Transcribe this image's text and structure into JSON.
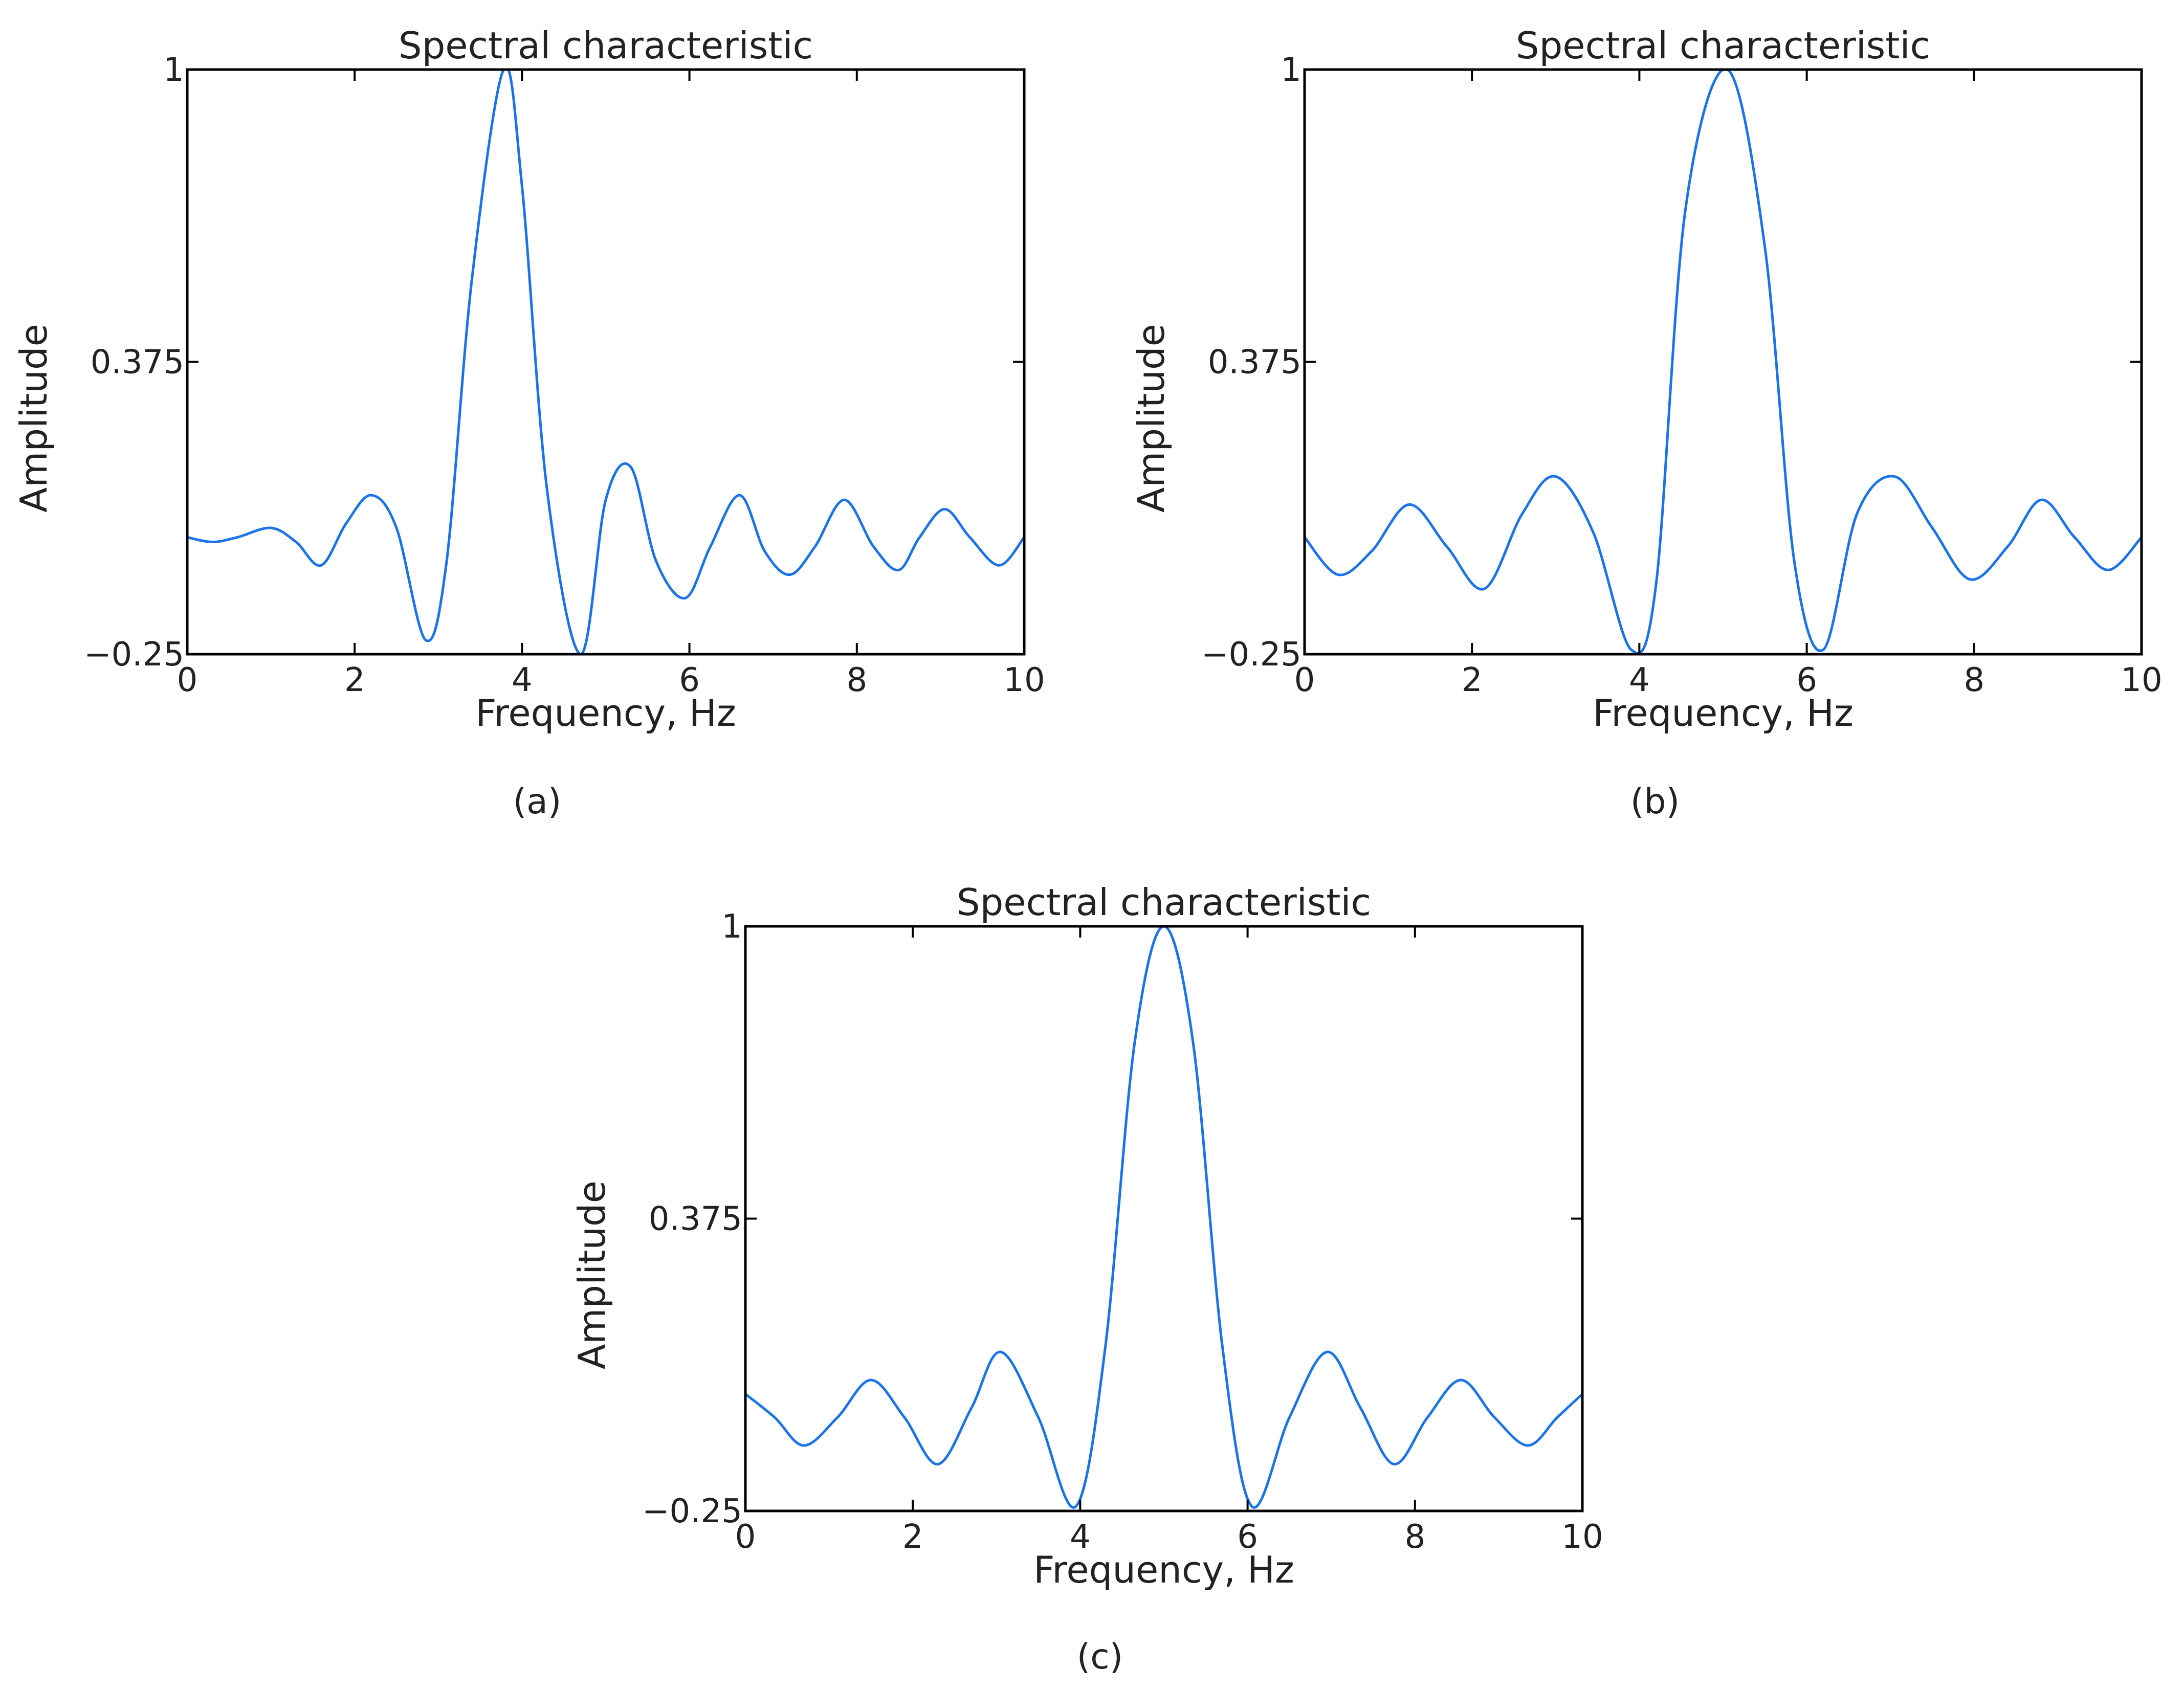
{
  "figure": {
    "line_color": "#1a73e8",
    "axis_color": "#000000"
  },
  "chart_data": [
    {
      "type": "line",
      "panel": "a",
      "caption": "(a)",
      "title": "Spectral characteristic",
      "xlabel": "Frequency, Hz",
      "ylabel": "Amplitude",
      "xlim": [
        0,
        10
      ],
      "ylim": [
        -0.25,
        1
      ],
      "xticks": [
        0,
        2,
        4,
        6,
        8,
        10
      ],
      "yticks": [
        -0.25,
        0.375,
        1
      ],
      "xtick_labels": [
        "0",
        "2",
        "4",
        "6",
        "8",
        "10"
      ],
      "ytick_labels": [
        "−0.25",
        "0.375",
        "1"
      ],
      "grid": false,
      "series": [
        {
          "x": [
            0,
            0.3,
            0.6,
            1.0,
            1.3,
            1.6,
            1.9,
            2.2,
            2.5,
            2.85,
            3.1,
            3.4,
            3.78,
            4.0,
            4.3,
            4.7,
            5.0,
            5.3,
            5.6,
            5.95,
            6.25,
            6.6,
            6.9,
            7.2,
            7.5,
            7.85,
            8.2,
            8.5,
            8.75,
            9.05,
            9.35,
            9.7,
            10.0
          ],
          "y": [
            0.0,
            -0.01,
            0.0,
            0.02,
            -0.01,
            -0.06,
            0.03,
            0.09,
            0.02,
            -0.22,
            -0.05,
            0.55,
            1.0,
            0.75,
            0.1,
            -0.25,
            0.08,
            0.15,
            -0.05,
            -0.13,
            -0.02,
            0.09,
            -0.03,
            -0.08,
            -0.02,
            0.08,
            -0.02,
            -0.07,
            0.0,
            0.06,
            0.0,
            -0.06,
            0.0
          ]
        }
      ]
    },
    {
      "type": "line",
      "panel": "b",
      "caption": "(b)",
      "title": "Spectral characteristic",
      "xlabel": "Frequency, Hz",
      "ylabel": "Amplitude",
      "xlim": [
        0,
        10
      ],
      "ylim": [
        -0.25,
        1
      ],
      "xticks": [
        0,
        2,
        4,
        6,
        8,
        10
      ],
      "yticks": [
        -0.25,
        0.375,
        1
      ],
      "xtick_labels": [
        "0",
        "2",
        "4",
        "6",
        "8",
        "10"
      ],
      "ytick_labels": [
        "−0.25",
        "0.375",
        "1"
      ],
      "grid": false,
      "series": [
        {
          "x": [
            0,
            0.4,
            0.8,
            1.25,
            1.7,
            2.15,
            2.6,
            3.0,
            3.45,
            3.9,
            4.2,
            4.55,
            5.05,
            5.5,
            5.85,
            6.2,
            6.6,
            7.05,
            7.5,
            7.95,
            8.4,
            8.8,
            9.2,
            9.6,
            10.0
          ],
          "y": [
            0.0,
            -0.08,
            -0.03,
            0.07,
            -0.02,
            -0.11,
            0.05,
            0.13,
            0.01,
            -0.24,
            -0.1,
            0.7,
            1.0,
            0.62,
            -0.05,
            -0.24,
            0.05,
            0.13,
            0.02,
            -0.09,
            -0.02,
            0.08,
            0.0,
            -0.07,
            0.0
          ]
        }
      ]
    },
    {
      "type": "line",
      "panel": "c",
      "caption": "(c)",
      "title": "Spectral characteristic",
      "xlabel": "Frequency, Hz",
      "ylabel": "Amplitude",
      "xlim": [
        0,
        10
      ],
      "ylim": [
        -0.25,
        1
      ],
      "xticks": [
        0,
        2,
        4,
        6,
        8,
        10
      ],
      "yticks": [
        -0.25,
        0.375,
        1
      ],
      "xtick_labels": [
        "0",
        "2",
        "4",
        "6",
        "8",
        "10"
      ],
      "ytick_labels": [
        "−0.25",
        "0.375",
        "1"
      ],
      "grid": false,
      "series": [
        {
          "x": [
            0,
            0.35,
            0.7,
            1.1,
            1.5,
            1.9,
            2.3,
            2.7,
            3.05,
            3.5,
            3.95,
            4.3,
            4.65,
            5.0,
            5.35,
            5.7,
            6.05,
            6.5,
            6.95,
            7.35,
            7.75,
            8.15,
            8.55,
            8.95,
            9.35,
            9.7,
            10.0
          ],
          "y": [
            0.0,
            -0.05,
            -0.11,
            -0.05,
            0.03,
            -0.05,
            -0.15,
            -0.03,
            0.09,
            -0.05,
            -0.24,
            0.1,
            0.75,
            1.0,
            0.75,
            0.1,
            -0.24,
            -0.05,
            0.09,
            -0.03,
            -0.15,
            -0.05,
            0.03,
            -0.05,
            -0.11,
            -0.05,
            0.0
          ]
        }
      ]
    }
  ]
}
